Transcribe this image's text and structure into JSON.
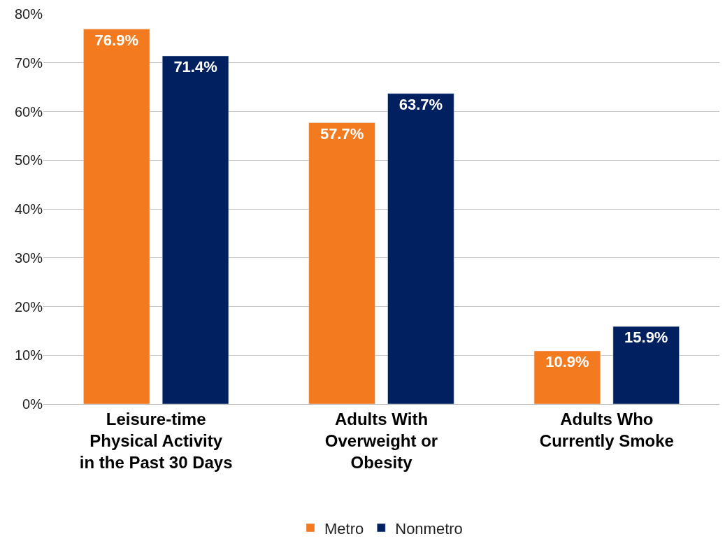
{
  "chart_data": {
    "type": "bar",
    "categories": [
      "Leisure-time Physical Activity in the Past 30 Days",
      "Adults With Overweight or Obesity",
      "Adults Who Currently Smoke"
    ],
    "series": [
      {
        "name": "Metro",
        "color": "#f47a20",
        "values": [
          76.9,
          57.7,
          10.9
        ],
        "value_labels": [
          "76.9%",
          "57.7%",
          "10.9%"
        ]
      },
      {
        "name": "Nonmetro",
        "color": "#002060",
        "values": [
          71.4,
          63.7,
          15.9
        ],
        "value_labels": [
          "71.4%",
          "63.7%",
          "15.9%"
        ]
      }
    ],
    "ylim": [
      0,
      80
    ],
    "yticks": [
      {
        "value": 0,
        "label": "0%"
      },
      {
        "value": 10,
        "label": "10%"
      },
      {
        "value": 20,
        "label": "20%"
      },
      {
        "value": 30,
        "label": "30%"
      },
      {
        "value": 40,
        "label": "40%"
      },
      {
        "value": 50,
        "label": "50%"
      },
      {
        "value": 60,
        "label": "60%"
      },
      {
        "value": 70,
        "label": "70%"
      },
      {
        "value": 80,
        "label": "80%"
      }
    ],
    "grid": "y",
    "legend": "bottom"
  }
}
